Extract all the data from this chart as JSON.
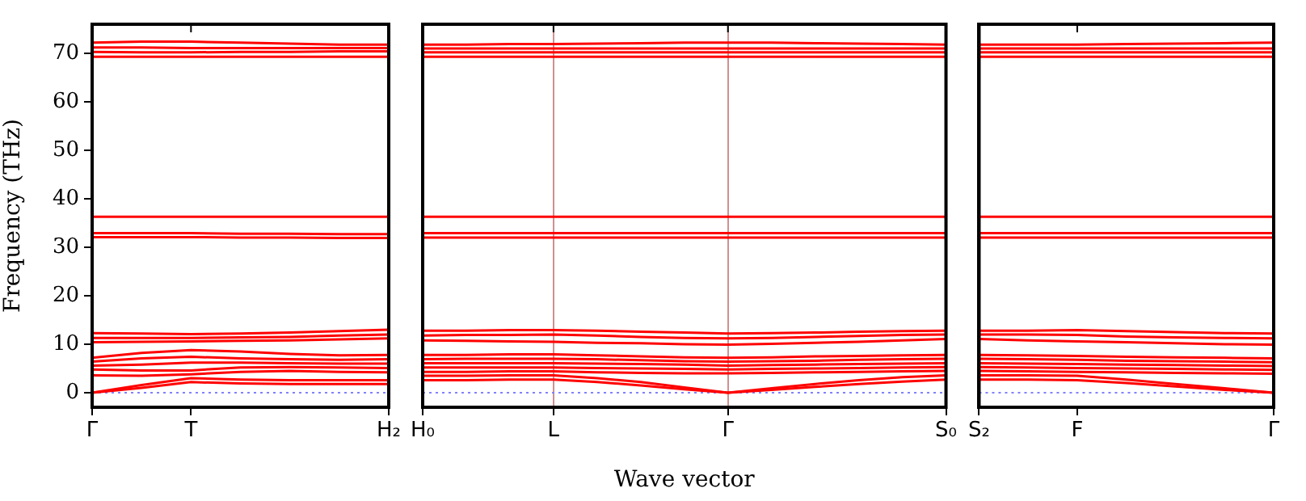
{
  "chart_data": [
    {
      "type": "line",
      "ylabel": "Frequency (THz)",
      "categories": [
        "Γ",
        null,
        "T",
        null,
        null,
        null,
        "H₂"
      ],
      "ylim": [
        -3,
        76
      ],
      "yticks": [
        0,
        10,
        20,
        30,
        40,
        50,
        60,
        70
      ],
      "grid": false,
      "legend": false,
      "marker": "none",
      "line_style": "solid",
      "ref_lines": [
        {
          "axis": "y",
          "value": 0,
          "color": "#8080ff",
          "line_style": "dotted"
        }
      ],
      "series": [
        {
          "color": "#ff0000",
          "values": [
            72.2,
            72.4,
            72.4,
            72.2,
            72,
            71.8,
            71.8
          ]
        },
        {
          "color": "#ff0000",
          "values": [
            71.2,
            71.2,
            71.1,
            71.1,
            71.1,
            71.1,
            71.1
          ]
        },
        {
          "color": "#ff0000",
          "values": [
            70.3,
            70.2,
            70.2,
            70.3,
            70.3,
            70.4,
            70.4
          ]
        },
        {
          "color": "#ff0000",
          "values": [
            69.3,
            69.3,
            69.3,
            69.3,
            69.3,
            69.3,
            69.3
          ]
        },
        {
          "color": "#ff0000",
          "values": [
            36.3,
            36.3,
            36.3,
            36.3,
            36.3,
            36.3,
            36.3
          ]
        },
        {
          "color": "#ff0000",
          "values": [
            32.9,
            32.9,
            32.9,
            32.8,
            32.8,
            32.7,
            32.7
          ]
        },
        {
          "color": "#ff0000",
          "values": [
            32.1,
            32.1,
            32.1,
            32,
            32,
            31.9,
            31.9
          ]
        },
        {
          "color": "#ff0000",
          "values": [
            12.3,
            12.2,
            12.1,
            12.2,
            12.4,
            12.7,
            13
          ]
        },
        {
          "color": "#ff0000",
          "values": [
            11.3,
            11.3,
            11.3,
            11.4,
            11.5,
            11.8,
            12
          ]
        },
        {
          "color": "#ff0000",
          "values": [
            10.4,
            10.5,
            10.6,
            10.7,
            10.8,
            11,
            11.2
          ]
        },
        {
          "color": "#ff0000",
          "values": [
            7.2,
            8.2,
            8.8,
            8.5,
            8,
            7.7,
            7.8
          ]
        },
        {
          "color": "#ff0000",
          "values": [
            6.4,
            7.1,
            7.4,
            7.1,
            6.9,
            6.8,
            6.9
          ]
        },
        {
          "color": "#ff0000",
          "values": [
            5.6,
            5.8,
            6.2,
            6.2,
            6.1,
            6,
            6
          ]
        },
        {
          "color": "#ff0000",
          "values": [
            4.8,
            4.6,
            4.6,
            5.2,
            5.3,
            5.2,
            5.1
          ]
        },
        {
          "color": "#ff0000",
          "values": [
            3.6,
            3.5,
            3.8,
            4.3,
            4.5,
            4.3,
            4.2
          ]
        },
        {
          "color": "#ff0000",
          "values": [
            0,
            1.6,
            3,
            2.7,
            2.6,
            2.6,
            2.6
          ]
        },
        {
          "color": "#ff0000",
          "values": [
            0,
            1,
            2.2,
            1.9,
            1.8,
            1.8,
            1.8
          ]
        }
      ]
    },
    {
      "type": "line",
      "xlabel": "Wave vector",
      "categories": [
        "H₀",
        null,
        null,
        "L",
        null,
        null,
        null,
        "Γ",
        null,
        null,
        null,
        null,
        "S₀"
      ],
      "ylim": [
        -3,
        76
      ],
      "yticks": [
        0,
        10,
        20,
        30,
        40,
        50,
        60,
        70
      ],
      "tick_labels": "x",
      "grid": "x",
      "legend": false,
      "marker": "none",
      "line_style": "solid",
      "ref_lines": [
        {
          "axis": "y",
          "value": 0,
          "color": "#8080ff",
          "line_style": "dotted"
        }
      ],
      "series": [
        {
          "color": "#ff0000",
          "values": [
            71.8,
            71.8,
            71.9,
            71.9,
            72,
            72.1,
            72.2,
            72.2,
            72.2,
            72.1,
            72,
            71.9,
            71.8
          ]
        },
        {
          "color": "#ff0000",
          "values": [
            71,
            71,
            71,
            71,
            71,
            71,
            71,
            71,
            71,
            71,
            71,
            71,
            71
          ]
        },
        {
          "color": "#ff0000",
          "values": [
            70.2,
            70.2,
            70.2,
            70.2,
            70.2,
            70.2,
            70.2,
            70.2,
            70.2,
            70.2,
            70.2,
            70.2,
            70.2
          ]
        },
        {
          "color": "#ff0000",
          "values": [
            69.3,
            69.3,
            69.3,
            69.3,
            69.3,
            69.3,
            69.3,
            69.3,
            69.3,
            69.3,
            69.3,
            69.3,
            69.3
          ]
        },
        {
          "color": "#ff0000",
          "values": [
            36.3,
            36.3,
            36.3,
            36.3,
            36.3,
            36.3,
            36.3,
            36.3,
            36.3,
            36.3,
            36.3,
            36.3,
            36.3
          ]
        },
        {
          "color": "#ff0000",
          "values": [
            32.9,
            32.9,
            32.9,
            32.9,
            32.9,
            32.9,
            32.9,
            32.9,
            32.9,
            32.9,
            32.9,
            32.9,
            32.9
          ]
        },
        {
          "color": "#ff0000",
          "values": [
            32,
            32,
            32,
            32,
            32,
            32,
            32,
            32,
            32,
            32,
            32,
            32,
            32
          ]
        },
        {
          "color": "#ff0000",
          "values": [
            12.8,
            12.8,
            12.9,
            12.9,
            12.8,
            12.6,
            12.4,
            12.2,
            12.3,
            12.4,
            12.6,
            12.7,
            12.8
          ]
        },
        {
          "color": "#ff0000",
          "values": [
            11.8,
            11.9,
            11.9,
            12,
            11.8,
            11.5,
            11.3,
            11.2,
            11.3,
            11.5,
            11.7,
            11.9,
            12
          ]
        },
        {
          "color": "#ff0000",
          "values": [
            10.8,
            10.7,
            10.6,
            10.5,
            10.3,
            10.2,
            10,
            9.9,
            10.1,
            10.3,
            10.5,
            10.8,
            11.1
          ]
        },
        {
          "color": "#ff0000",
          "values": [
            7.8,
            7.8,
            7.9,
            7.9,
            7.7,
            7.5,
            7.3,
            7.2,
            7.3,
            7.5,
            7.6,
            7.7,
            7.8
          ]
        },
        {
          "color": "#ff0000",
          "values": [
            6.9,
            7,
            7,
            7,
            6.9,
            6.7,
            6.5,
            6.4,
            6.5,
            6.6,
            6.8,
            6.9,
            7
          ]
        },
        {
          "color": "#ff0000",
          "values": [
            6.1,
            6.1,
            6.1,
            6.1,
            6,
            5.9,
            5.8,
            5.6,
            5.7,
            5.8,
            5.9,
            6,
            6.1
          ]
        },
        {
          "color": "#ff0000",
          "values": [
            5.2,
            5.2,
            5.2,
            5.2,
            5.1,
            5,
            4.9,
            4.8,
            4.9,
            5,
            5.1,
            5.2,
            5.3
          ]
        },
        {
          "color": "#ff0000",
          "values": [
            4.3,
            4.3,
            4.4,
            4.4,
            4.2,
            4.1,
            4,
            4,
            4.1,
            4.2,
            4.3,
            4.4,
            4.5
          ]
        },
        {
          "color": "#ff0000",
          "values": [
            3.5,
            3.5,
            3.6,
            3.6,
            3,
            2.2,
            1.1,
            0,
            0.9,
            1.8,
            2.6,
            3.2,
            3.6
          ]
        },
        {
          "color": "#ff0000",
          "values": [
            2.6,
            2.6,
            2.7,
            2.7,
            2.2,
            1.5,
            0.7,
            0,
            0.6,
            1.2,
            1.8,
            2.3,
            2.7
          ]
        }
      ]
    },
    {
      "type": "line",
      "categories": [
        "S₂",
        null,
        "F",
        null,
        null,
        null,
        "Γ"
      ],
      "ylim": [
        -3,
        76
      ],
      "yticks": [
        0,
        10,
        20,
        30,
        40,
        50,
        60,
        70
      ],
      "tick_labels": "x",
      "grid": false,
      "legend": false,
      "marker": "none",
      "line_style": "solid",
      "ref_lines": [
        {
          "axis": "y",
          "value": 0,
          "color": "#8080ff",
          "line_style": "dotted"
        }
      ],
      "series": [
        {
          "color": "#ff0000",
          "values": [
            71.8,
            71.8,
            71.8,
            71.9,
            72,
            72.1,
            72.2
          ]
        },
        {
          "color": "#ff0000",
          "values": [
            71,
            71,
            71,
            71,
            71,
            71,
            71
          ]
        },
        {
          "color": "#ff0000",
          "values": [
            70.2,
            70.2,
            70.2,
            70.2,
            70.2,
            70.2,
            70.2
          ]
        },
        {
          "color": "#ff0000",
          "values": [
            69.3,
            69.3,
            69.3,
            69.3,
            69.3,
            69.3,
            69.3
          ]
        },
        {
          "color": "#ff0000",
          "values": [
            36.3,
            36.3,
            36.3,
            36.3,
            36.3,
            36.3,
            36.3
          ]
        },
        {
          "color": "#ff0000",
          "values": [
            32.9,
            32.9,
            32.9,
            32.9,
            32.9,
            32.9,
            32.9
          ]
        },
        {
          "color": "#ff0000",
          "values": [
            32,
            32,
            32,
            32,
            32,
            32,
            32
          ]
        },
        {
          "color": "#ff0000",
          "values": [
            12.8,
            12.8,
            12.9,
            12.7,
            12.5,
            12.3,
            12.2
          ]
        },
        {
          "color": "#ff0000",
          "values": [
            12,
            12,
            11.9,
            11.6,
            11.4,
            11.3,
            11.2
          ]
        },
        {
          "color": "#ff0000",
          "values": [
            11.1,
            10.8,
            10.6,
            10.4,
            10.2,
            10,
            9.9
          ]
        },
        {
          "color": "#ff0000",
          "values": [
            7.8,
            7.7,
            7.6,
            7.4,
            7.3,
            7.2,
            7.1
          ]
        },
        {
          "color": "#ff0000",
          "values": [
            7,
            6.9,
            6.8,
            6.6,
            6.5,
            6.4,
            6.3
          ]
        },
        {
          "color": "#ff0000",
          "values": [
            6.1,
            6,
            5.9,
            5.8,
            5.7,
            5.6,
            5.5
          ]
        },
        {
          "color": "#ff0000",
          "values": [
            5.3,
            5.2,
            5.1,
            5,
            4.9,
            4.8,
            4.7
          ]
        },
        {
          "color": "#ff0000",
          "values": [
            4.5,
            4.4,
            4.3,
            4.2,
            4.1,
            4,
            3.9
          ]
        },
        {
          "color": "#ff0000",
          "values": [
            3.6,
            3.6,
            3.5,
            2.7,
            1.8,
            0.9,
            0
          ]
        },
        {
          "color": "#ff0000",
          "values": [
            2.7,
            2.7,
            2.6,
            2,
            1.3,
            0.6,
            0
          ]
        }
      ]
    }
  ]
}
